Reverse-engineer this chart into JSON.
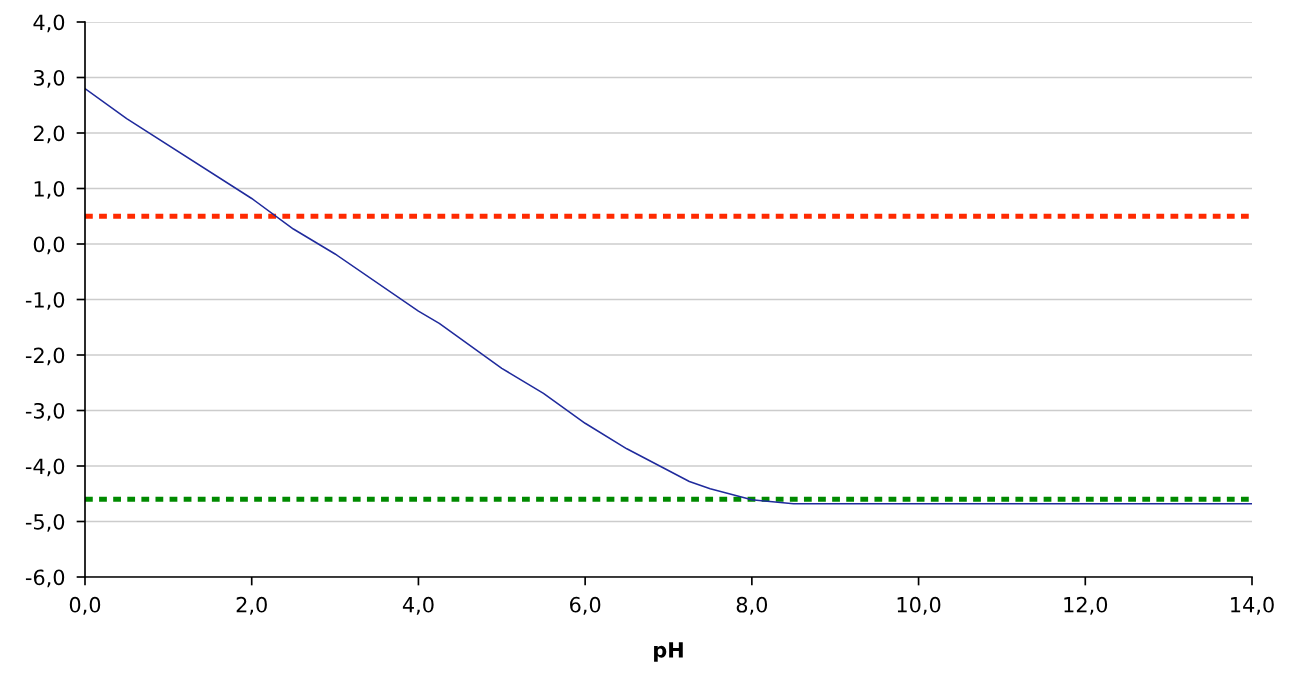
{
  "chart_data": {
    "type": "line",
    "xlabel": "pH",
    "x": [
      0,
      0.5,
      2.0,
      2.5,
      3.0,
      4.0,
      4.25,
      5.0,
      5.5,
      6.0,
      6.5,
      7.25,
      7.5,
      8.0,
      8.5,
      14.0
    ],
    "series": [
      {
        "color": "#1f2a9c",
        "values": [
          2.8,
          2.26,
          0.82,
          0.27,
          -0.18,
          -1.21,
          -1.43,
          -2.24,
          -2.69,
          -3.23,
          -3.69,
          -4.28,
          -4.41,
          -4.61,
          -4.68,
          -4.68
        ]
      }
    ],
    "xlim": [
      0,
      14
    ],
    "xticks": [
      {
        "value": 0,
        "label": "0,0"
      },
      {
        "value": 2,
        "label": "2,0"
      },
      {
        "value": 4,
        "label": "4,0"
      },
      {
        "value": 6,
        "label": "6,0"
      },
      {
        "value": 8,
        "label": "8,0"
      },
      {
        "value": 10,
        "label": "10,0"
      },
      {
        "value": 12,
        "label": "12,0"
      },
      {
        "value": 14,
        "label": "14,0"
      }
    ],
    "ylim": [
      -6,
      4
    ],
    "yticks": [
      {
        "value": -6,
        "label": "-6,0"
      },
      {
        "value": -5,
        "label": "-5,0"
      },
      {
        "value": -4,
        "label": "-4,0"
      },
      {
        "value": -3,
        "label": "-3,0"
      },
      {
        "value": -2,
        "label": "-2,0"
      },
      {
        "value": -1,
        "label": "-1,0"
      },
      {
        "value": 0,
        "label": "0,0"
      },
      {
        "value": 1,
        "label": "1,0"
      },
      {
        "value": 2,
        "label": "2,0"
      },
      {
        "value": 3,
        "label": "3,0"
      },
      {
        "value": 4,
        "label": "4,0"
      }
    ],
    "ref_lines": [
      {
        "axis": "y",
        "value": 0.5,
        "color": "#ff2a00",
        "line_style": "dotted"
      },
      {
        "axis": "y",
        "value": -4.6,
        "color": "#008a00",
        "line_style": "dotted"
      }
    ],
    "grid": "y",
    "legend": false,
    "marker": "none",
    "line_style": "solid"
  }
}
